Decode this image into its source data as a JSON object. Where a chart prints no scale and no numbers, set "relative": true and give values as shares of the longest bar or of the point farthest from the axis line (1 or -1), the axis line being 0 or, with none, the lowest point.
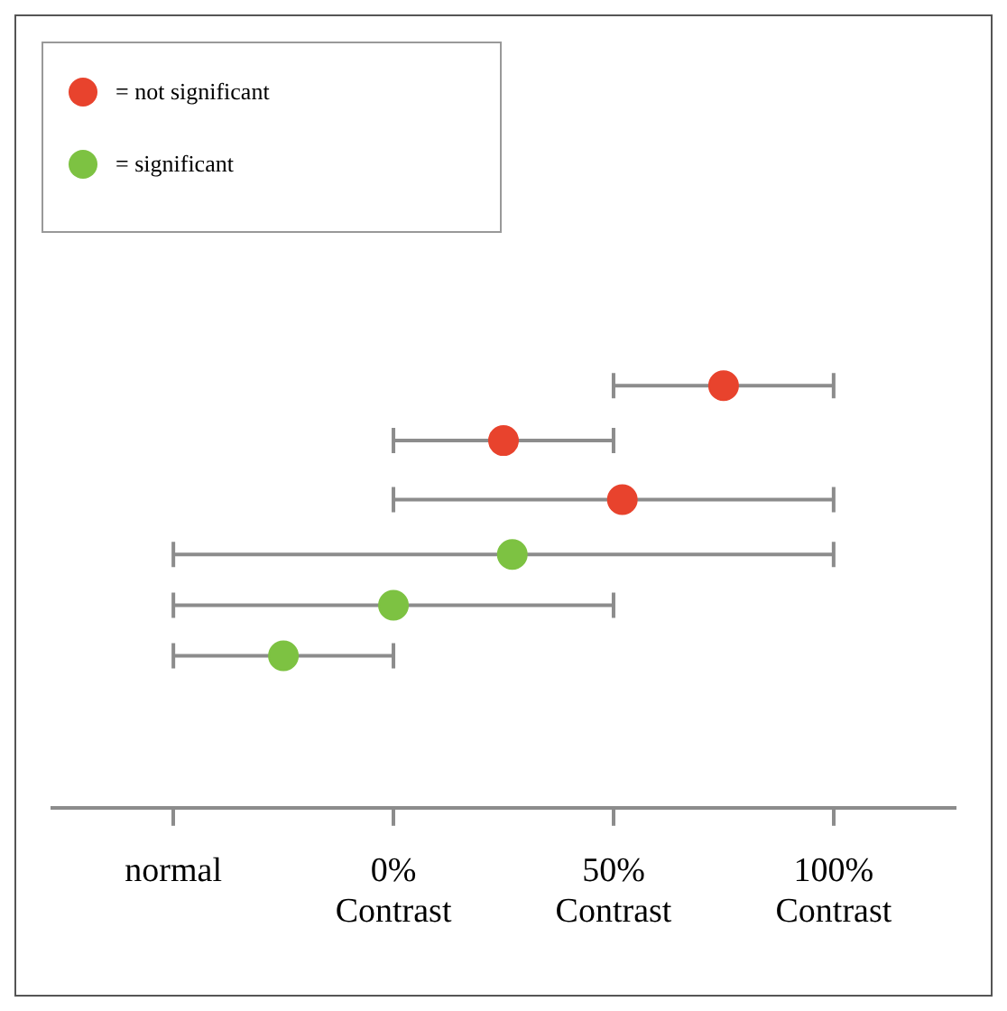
{
  "chart_data": {
    "type": "scatter",
    "relative": true,
    "marker": "circle",
    "legend": "top left",
    "grid": false,
    "xlim": [
      -77.5,
      127.5
    ],
    "xticks": [
      {
        "value": -50,
        "label": "normal"
      },
      {
        "value": 0,
        "label": "0% Contrast"
      },
      {
        "value": 50,
        "label": "50% Contrast"
      },
      {
        "value": 100,
        "label": "100% Contrast"
      }
    ],
    "series": [
      {
        "name": "= not significant",
        "color": "#e8432d",
        "x": [
          75,
          25,
          52
        ],
        "values": [
          1,
          0.87,
          0.73
        ],
        "xerrors": [
          [
            50,
            100
          ],
          [
            0,
            50
          ],
          [
            0,
            100
          ]
        ]
      },
      {
        "name": "= significant",
        "color": "#7dc242",
        "x": [
          27,
          0,
          -25
        ],
        "values": [
          0.6,
          0.48,
          0.36
        ],
        "xerrors": [
          [
            -50,
            100
          ],
          [
            -50,
            50
          ],
          [
            -50,
            0
          ]
        ]
      }
    ]
  }
}
